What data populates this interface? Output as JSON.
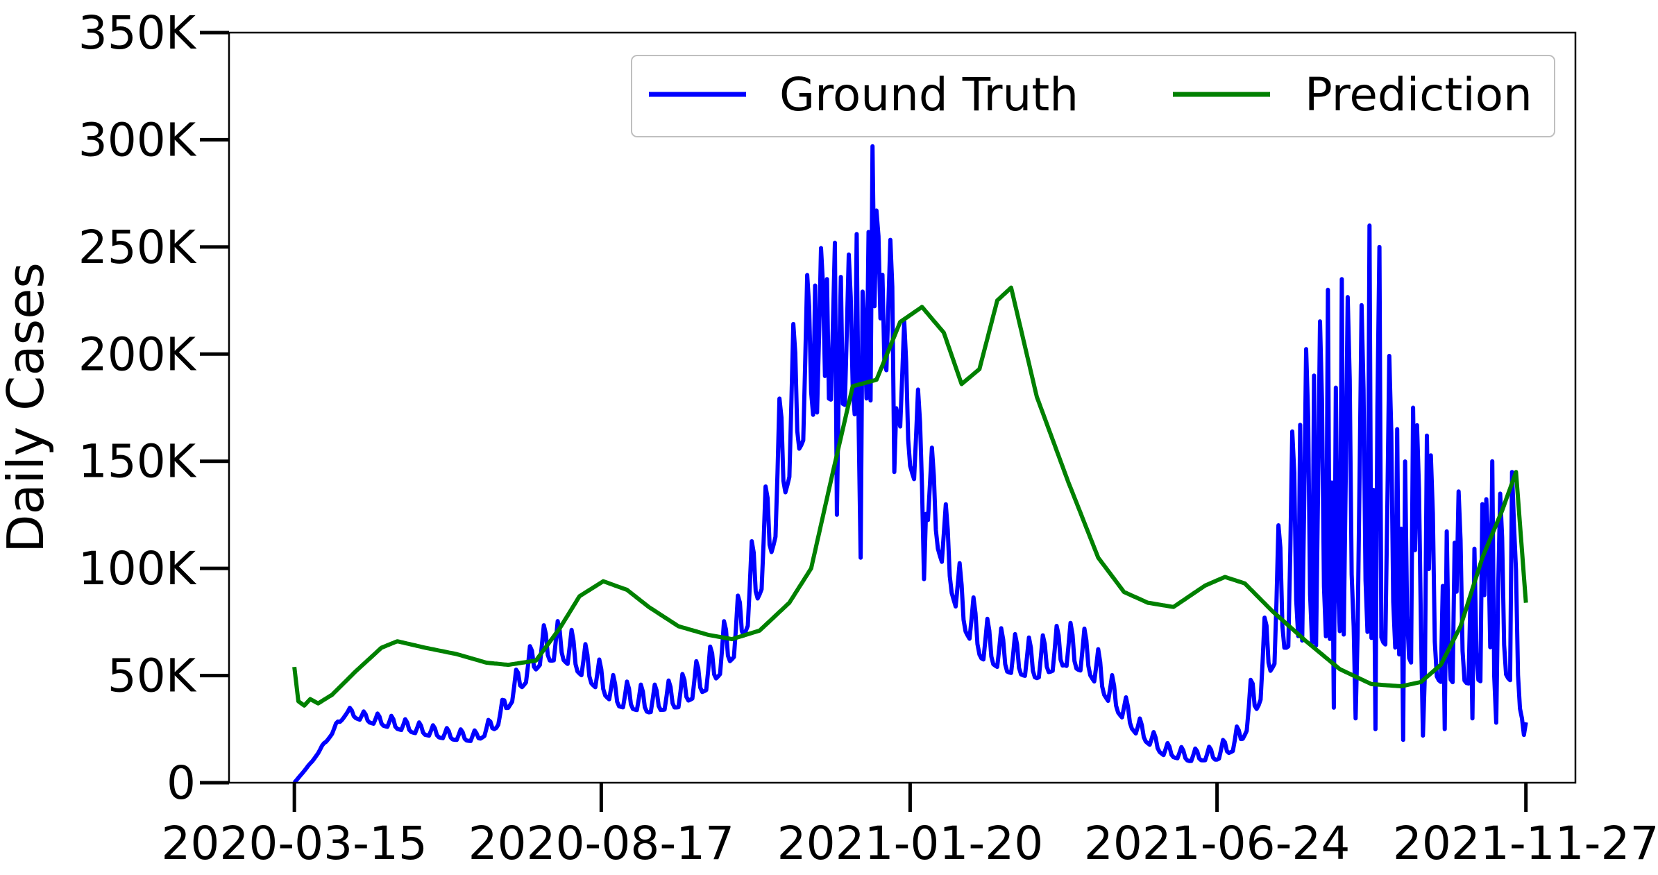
{
  "chart_data": {
    "type": "line",
    "title": "",
    "xlabel": "",
    "ylabel": "Daily Cases",
    "x_ticks": [
      "2020-03-15",
      "2020-08-17",
      "2021-01-20",
      "2021-06-24",
      "2021-11-27"
    ],
    "y_ticks": [
      "0",
      "50K",
      "100K",
      "150K",
      "200K",
      "250K",
      "300K",
      "350K"
    ],
    "x_start": "2020-03-15",
    "x_end": "2021-11-27",
    "xlim": [
      "2020-02-11",
      "2021-12-22"
    ],
    "ylim": [
      0,
      350000
    ],
    "grid": false,
    "legend": {
      "placement": "top-right",
      "columns": 2
    },
    "series": [
      {
        "name": "Ground Truth",
        "color": "#0000ff",
        "anchors": [
          [
            "2020-03-15",
            0
          ],
          [
            "2020-03-24",
            10000
          ],
          [
            "2020-04-02",
            22000
          ],
          [
            "2020-04-10",
            33000
          ],
          [
            "2020-04-20",
            30000
          ],
          [
            "2020-05-01",
            28000
          ],
          [
            "2020-05-15",
            25000
          ],
          [
            "2020-06-01",
            22000
          ],
          [
            "2020-06-15",
            21000
          ],
          [
            "2020-06-25",
            28000
          ],
          [
            "2020-07-05",
            45000
          ],
          [
            "2020-07-18",
            62000
          ],
          [
            "2020-07-28",
            64000
          ],
          [
            "2020-08-08",
            55000
          ],
          [
            "2020-08-25",
            40000
          ],
          [
            "2020-09-10",
            37000
          ],
          [
            "2020-09-25",
            40000
          ],
          [
            "2020-10-10",
            50000
          ],
          [
            "2020-10-25",
            70000
          ],
          [
            "2020-11-08",
            110000
          ],
          [
            "2020-11-20",
            165000
          ],
          [
            "2020-12-01",
            195000
          ],
          [
            "2020-12-10",
            205000
          ],
          [
            "2020-12-20",
            200000
          ],
          [
            "2020-12-28",
            185000
          ],
          [
            "2021-01-05",
            230000
          ],
          [
            "2021-01-12",
            200000
          ],
          [
            "2021-01-20",
            165000
          ],
          [
            "2021-01-28",
            140000
          ],
          [
            "2021-02-05",
            115000
          ],
          [
            "2021-02-15",
            82000
          ],
          [
            "2021-02-25",
            65000
          ],
          [
            "2021-03-10",
            58000
          ],
          [
            "2021-03-25",
            55000
          ],
          [
            "2021-04-08",
            62000
          ],
          [
            "2021-04-20",
            58000
          ],
          [
            "2021-05-01",
            42000
          ],
          [
            "2021-05-15",
            25000
          ],
          [
            "2021-05-28",
            15000
          ],
          [
            "2021-06-10",
            12000
          ],
          [
            "2021-06-24",
            13000
          ],
          [
            "2021-07-05",
            20000
          ],
          [
            "2021-07-15",
            45000
          ],
          [
            "2021-07-25",
            80000
          ],
          [
            "2021-08-05",
            110000
          ],
          [
            "2021-08-20",
            120000
          ],
          [
            "2021-09-01",
            125000
          ],
          [
            "2021-09-15",
            115000
          ],
          [
            "2021-10-01",
            95000
          ],
          [
            "2021-10-15",
            80000
          ],
          [
            "2021-11-01",
            75000
          ],
          [
            "2021-11-15",
            80000
          ],
          [
            "2021-11-22",
            70000
          ],
          [
            "2021-11-27",
            25000
          ]
        ],
        "peaks": [
          [
            "2020-12-03",
            232000
          ],
          [
            "2020-12-09",
            235000
          ],
          [
            "2020-12-16",
            236000
          ],
          [
            "2020-12-24",
            256000
          ],
          [
            "2020-12-30",
            257000
          ],
          [
            "2021-01-01",
            297000
          ],
          [
            "2021-01-06",
            237000
          ],
          [
            "2021-08-05",
            167000
          ],
          [
            "2021-08-12",
            190000
          ],
          [
            "2021-08-19",
            230000
          ],
          [
            "2021-08-26",
            235000
          ],
          [
            "2021-09-09",
            260000
          ],
          [
            "2021-09-14",
            250000
          ],
          [
            "2021-09-23",
            165000
          ],
          [
            "2021-10-01",
            175000
          ],
          [
            "2021-10-08",
            162000
          ],
          [
            "2021-10-22",
            112000
          ],
          [
            "2021-11-05",
            130000
          ],
          [
            "2021-11-10",
            150000
          ],
          [
            "2021-11-20",
            145000
          ]
        ],
        "troughs": [
          [
            "2020-12-14",
            125000
          ],
          [
            "2020-12-26",
            105000
          ],
          [
            "2021-01-12",
            145000
          ],
          [
            "2021-01-27",
            95000
          ],
          [
            "2021-08-22",
            35000
          ],
          [
            "2021-09-02",
            30000
          ],
          [
            "2021-09-12",
            25000
          ],
          [
            "2021-09-26",
            20000
          ],
          [
            "2021-10-06",
            22000
          ],
          [
            "2021-10-17",
            25000
          ],
          [
            "2021-10-31",
            30000
          ],
          [
            "2021-11-12",
            28000
          ],
          [
            "2021-11-25",
            30000
          ]
        ],
        "weekly_amplitude": [
          [
            "2020-03-15",
            0
          ],
          [
            "2020-05-01",
            0.1
          ],
          [
            "2020-09-01",
            0.16
          ],
          [
            "2020-11-15",
            0.2
          ],
          [
            "2021-02-01",
            0.15
          ],
          [
            "2021-05-15",
            0.18
          ],
          [
            "2021-07-20",
            0.3
          ],
          [
            "2021-08-10",
            0.65
          ],
          [
            "2021-10-15",
            0.6
          ],
          [
            "2021-11-27",
            0.5
          ]
        ]
      },
      {
        "name": "Prediction",
        "color": "#008000",
        "anchors": [
          [
            "2020-03-15",
            54000
          ],
          [
            "2020-03-17",
            38000
          ],
          [
            "2020-03-20",
            36000
          ],
          [
            "2020-03-23",
            39000
          ],
          [
            "2020-03-27",
            37000
          ],
          [
            "2020-04-03",
            41000
          ],
          [
            "2020-04-15",
            52000
          ],
          [
            "2020-04-28",
            63000
          ],
          [
            "2020-05-06",
            66000
          ],
          [
            "2020-05-20",
            63000
          ],
          [
            "2020-06-05",
            60000
          ],
          [
            "2020-06-20",
            56000
          ],
          [
            "2020-07-01",
            55000
          ],
          [
            "2020-07-15",
            57000
          ],
          [
            "2020-07-27",
            72000
          ],
          [
            "2020-08-06",
            87000
          ],
          [
            "2020-08-18",
            94000
          ],
          [
            "2020-08-30",
            90000
          ],
          [
            "2020-09-10",
            82000
          ],
          [
            "2020-09-25",
            73000
          ],
          [
            "2020-10-10",
            69000
          ],
          [
            "2020-10-22",
            67000
          ],
          [
            "2020-11-05",
            71000
          ],
          [
            "2020-11-20",
            84000
          ],
          [
            "2020-12-01",
            100000
          ],
          [
            "2020-12-12",
            145000
          ],
          [
            "2020-12-22",
            185000
          ],
          [
            "2021-01-03",
            188000
          ],
          [
            "2021-01-15",
            215000
          ],
          [
            "2021-01-26",
            222000
          ],
          [
            "2021-02-06",
            210000
          ],
          [
            "2021-02-15",
            186000
          ],
          [
            "2021-02-24",
            193000
          ],
          [
            "2021-03-05",
            225000
          ],
          [
            "2021-03-12",
            231000
          ],
          [
            "2021-03-25",
            180000
          ],
          [
            "2021-04-10",
            140000
          ],
          [
            "2021-04-25",
            105000
          ],
          [
            "2021-05-08",
            89000
          ],
          [
            "2021-05-20",
            84000
          ],
          [
            "2021-06-02",
            82000
          ],
          [
            "2021-06-18",
            92000
          ],
          [
            "2021-06-28",
            96000
          ],
          [
            "2021-07-08",
            93000
          ],
          [
            "2021-07-22",
            80000
          ],
          [
            "2021-08-08",
            66000
          ],
          [
            "2021-08-25",
            53000
          ],
          [
            "2021-09-10",
            46000
          ],
          [
            "2021-09-25",
            45000
          ],
          [
            "2021-10-05",
            47000
          ],
          [
            "2021-10-15",
            55000
          ],
          [
            "2021-10-25",
            73000
          ],
          [
            "2021-11-05",
            105000
          ],
          [
            "2021-11-15",
            127000
          ],
          [
            "2021-11-22",
            145000
          ],
          [
            "2021-11-27",
            84000
          ]
        ]
      }
    ]
  }
}
